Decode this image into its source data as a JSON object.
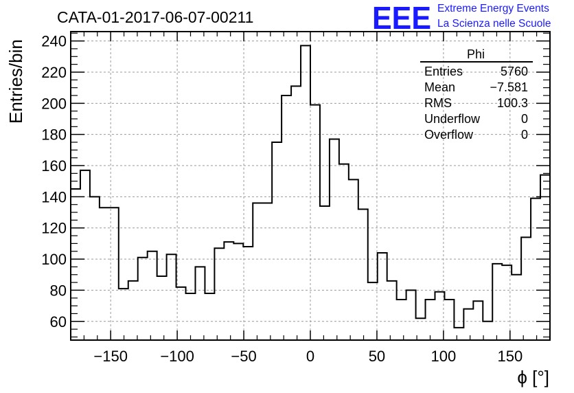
{
  "header": {
    "title": "CATA-01-2017-06-07-00211",
    "logo_text": "EEE",
    "logo_line1": "Extreme Energy Events",
    "logo_line2": "La Scienza nelle Scuole",
    "logo_color": "#1a1aff"
  },
  "stats": {
    "name": "Phi",
    "rows": [
      {
        "label": "Entries",
        "value": "5760"
      },
      {
        "label": "Mean",
        "value": "−7.581"
      },
      {
        "label": "RMS",
        "value": "100.3"
      },
      {
        "label": "Underflow",
        "value": "0"
      },
      {
        "label": "Overflow",
        "value": "0"
      }
    ]
  },
  "chart_data": {
    "type": "histogram",
    "xlabel": "ϕ [°]",
    "ylabel": "Entries/bin",
    "xlim": [
      -180,
      180
    ],
    "ylim": [
      48,
      246
    ],
    "grid": true,
    "x_ticks": [
      -150,
      -100,
      -50,
      0,
      50,
      100,
      150
    ],
    "x_tick_labels": [
      "−150",
      "−100",
      "−50",
      "0",
      "50",
      "100",
      "150"
    ],
    "y_ticks": [
      60,
      80,
      100,
      120,
      140,
      160,
      180,
      200,
      220,
      240
    ],
    "y_tick_labels": [
      "60",
      "80",
      "100",
      "120",
      "140",
      "160",
      "180",
      "200",
      "220",
      "240"
    ],
    "bin_width": 7.2,
    "values": [
      145,
      157,
      140,
      133,
      133,
      81,
      86,
      101,
      105,
      89,
      103,
      82,
      78,
      95,
      78,
      107,
      111,
      110,
      108,
      136,
      136,
      175,
      205,
      211,
      237,
      199,
      134,
      177,
      161,
      151,
      132,
      85,
      104,
      86,
      74,
      80,
      62,
      74,
      79,
      74,
      56,
      68,
      73,
      60,
      97,
      96,
      90,
      114,
      139,
      154
    ]
  }
}
